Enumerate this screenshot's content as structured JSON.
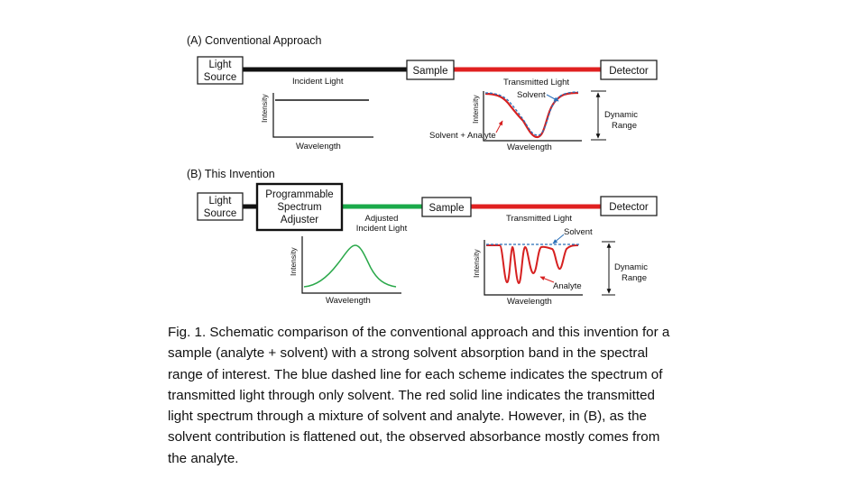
{
  "panel_a": {
    "title": "(A) Conventional Approach",
    "light_source": [
      "Light",
      "Source"
    ],
    "sample": "Sample",
    "detector": "Detector",
    "incident_light": "Incident Light",
    "transmitted_light": "Transmitted Light",
    "left_plot": {
      "ylabel": "Intensity",
      "xlabel": "Wavelength"
    },
    "right_plot": {
      "ylabel": "Intensity",
      "xlabel": "Wavelength",
      "solvent_label": "Solvent",
      "mixture_label": "Solvent + Analyte",
      "dynamic_range": [
        "Dynamic",
        "Range"
      ]
    }
  },
  "panel_b": {
    "title": "(B) This Invention",
    "light_source": [
      "Light",
      "Source"
    ],
    "adjuster": [
      "Programmable",
      "Spectrum",
      "Adjuster"
    ],
    "adjusted_light": [
      "Adjusted",
      "Incident Light"
    ],
    "sample": "Sample",
    "detector": "Detector",
    "transmitted_light": "Transmitted Light",
    "left_plot": {
      "ylabel": "Intensity",
      "xlabel": "Wavelength"
    },
    "right_plot": {
      "ylabel": "Intensity",
      "xlabel": "Wavelength",
      "solvent_label": "Solvent",
      "analyte_label": "Analyte",
      "dynamic_range": [
        "Dynamic",
        "Range"
      ]
    }
  },
  "colors": {
    "incident_beam": "#111111",
    "transmitted_beam": "#e02020",
    "adjusted_beam": "#1aaa4a",
    "solvent_curve": "#2a6fb8",
    "mixture_curve": "#d62020",
    "adjusted_curve": "#2aa84a",
    "solvent_label": "#2a7fc0",
    "red_label": "#d62020"
  },
  "caption": [
    "Fig. 1. Schematic comparison of the conventional approach and this invention for a",
    "sample (analyte + solvent) with a strong solvent absorption band in the spectral",
    "range of interest. The blue dashed line for each scheme indicates the spectrum of",
    "transmitted light through only solvent. The red solid line indicates the transmitted",
    "light spectrum through a mixture of solvent and analyte. However, in (B), as the",
    "solvent contribution is flattened out, the observed absorbance mostly comes from",
    "the analyte."
  ]
}
